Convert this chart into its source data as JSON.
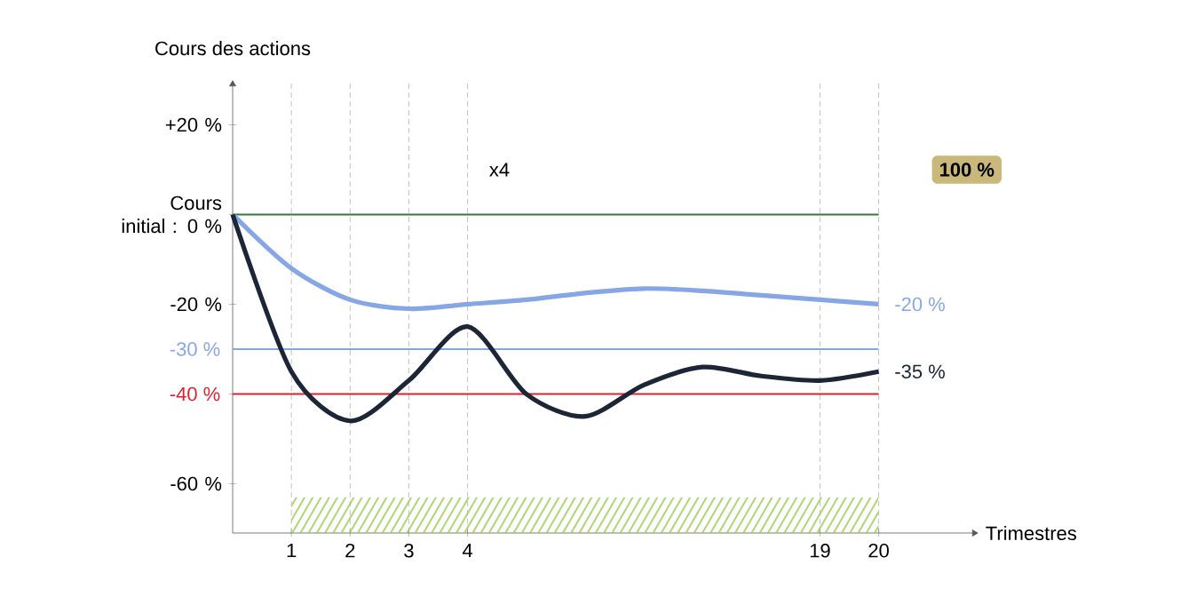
{
  "chart_data": {
    "type": "line",
    "xlabel": "Trimestres",
    "ylabel": "Cours des actions",
    "categories": [
      null,
      "1",
      "2",
      "3",
      "4",
      null,
      null,
      null,
      null,
      null,
      "19",
      "20"
    ],
    "ylim": [
      -71,
      30
    ],
    "yticks": [
      {
        "value": 20,
        "label": "+20 %"
      },
      {
        "value": 0,
        "label": "Cours initial : 0 %"
      },
      {
        "value": -20,
        "label": "-20 %"
      },
      {
        "value": -40,
        "label": null
      },
      {
        "value": -60,
        "label": "-60 %"
      }
    ],
    "grid": "x",
    "series": [
      {
        "color": "#86a6e6",
        "values": [
          0,
          -12,
          -19,
          -21,
          -20,
          -19,
          -17.5,
          -16.5,
          -17,
          -18,
          -19,
          -20
        ],
        "value_labels": [
          null,
          null,
          null,
          null,
          null,
          null,
          null,
          null,
          null,
          null,
          null,
          "-20 %"
        ]
      },
      {
        "color": "#1c2636",
        "values": [
          0,
          -35,
          -46,
          -37,
          -25,
          -40,
          -45,
          -38,
          -34,
          -36,
          -37,
          -35
        ],
        "value_labels": [
          null,
          null,
          null,
          null,
          null,
          null,
          null,
          null,
          null,
          null,
          null,
          "-35 %"
        ]
      }
    ],
    "ref_lines": [
      {
        "axis": "y",
        "value": 0,
        "color": "#2e7d32"
      },
      {
        "axis": "y",
        "value": -30,
        "label": "-30 %",
        "color": "#86a6e6"
      },
      {
        "axis": "y",
        "value": -40,
        "label": "-40 %",
        "color": "#e0202e"
      }
    ],
    "bands": [
      {
        "axis": "x",
        "from": "1",
        "to": "20",
        "color": "#9ccc50"
      }
    ],
    "annotations": [
      "x4",
      "100 %"
    ]
  }
}
